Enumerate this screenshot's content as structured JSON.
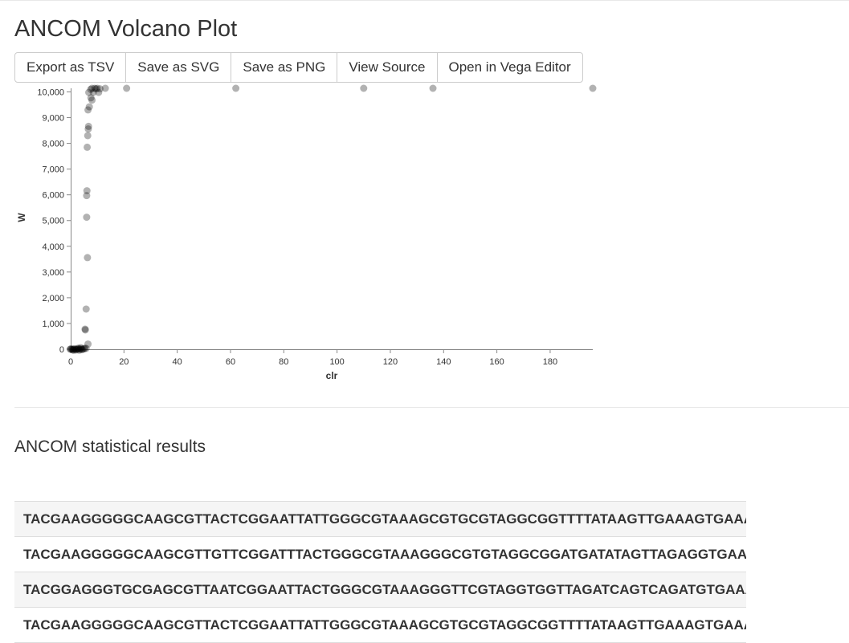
{
  "page": {
    "title": "ANCOM Volcano Plot",
    "section_title": "ANCOM statistical results"
  },
  "toolbar": {
    "export_tsv": "Export as TSV",
    "save_svg": "Save as SVG",
    "save_png": "Save as PNG",
    "view_source": "View Source",
    "open_vega": "Open in Vega Editor"
  },
  "chart_data": {
    "type": "scatter",
    "title": "",
    "xlabel": "clr",
    "ylabel": "W",
    "xlim": [
      0,
      196
    ],
    "ylim": [
      0,
      10140
    ],
    "x_ticks": [
      0,
      20,
      40,
      60,
      80,
      100,
      120,
      140,
      160,
      180
    ],
    "y_ticks": [
      0,
      1000,
      2000,
      3000,
      4000,
      5000,
      6000,
      7000,
      8000,
      9000,
      10000
    ],
    "y_tick_labels": [
      "0",
      "1,000",
      "2,000",
      "3,000",
      "4,000",
      "5,000",
      "6,000",
      "7,000",
      "8,000",
      "9,000",
      "10,000"
    ],
    "x_tick_labels": [
      "0",
      "20",
      "40",
      "60",
      "80",
      "100",
      "120",
      "140",
      "160",
      "180"
    ],
    "point_color": "#000000",
    "point_opacity": 0.3,
    "points": [
      {
        "x": 21,
        "y": 10140
      },
      {
        "x": 62,
        "y": 10140
      },
      {
        "x": 110,
        "y": 10140
      },
      {
        "x": 136,
        "y": 10140
      },
      {
        "x": 196,
        "y": 10140
      },
      {
        "x": 13,
        "y": 10140
      },
      {
        "x": 10,
        "y": 10140
      },
      {
        "x": 9,
        "y": 10140
      },
      {
        "x": 8,
        "y": 10140
      },
      {
        "x": 11,
        "y": 10120
      },
      {
        "x": 7.5,
        "y": 10100
      },
      {
        "x": 9.5,
        "y": 10120
      },
      {
        "x": 10.5,
        "y": 9980
      },
      {
        "x": 8.5,
        "y": 9980
      },
      {
        "x": 6.8,
        "y": 9980
      },
      {
        "x": 7.6,
        "y": 9770
      },
      {
        "x": 8,
        "y": 9680
      },
      {
        "x": 7,
        "y": 9420
      },
      {
        "x": 6.5,
        "y": 9300
      },
      {
        "x": 6.7,
        "y": 8660
      },
      {
        "x": 6.6,
        "y": 8560
      },
      {
        "x": 6.4,
        "y": 8300
      },
      {
        "x": 6.2,
        "y": 7850
      },
      {
        "x": 6.1,
        "y": 6160
      },
      {
        "x": 6.0,
        "y": 5970
      },
      {
        "x": 6.0,
        "y": 5130
      },
      {
        "x": 6.3,
        "y": 3560
      },
      {
        "x": 5.8,
        "y": 1560
      },
      {
        "x": 5.4,
        "y": 780
      },
      {
        "x": 5.5,
        "y": 750
      },
      {
        "x": 6.5,
        "y": 200
      },
      {
        "x": 5.8,
        "y": 30
      },
      {
        "x": 5.0,
        "y": 10
      },
      {
        "x": 4.5,
        "y": 0
      },
      {
        "x": 4.0,
        "y": 20
      },
      {
        "x": 3.5,
        "y": 0
      },
      {
        "x": 3.0,
        "y": 10
      },
      {
        "x": 2.6,
        "y": 0
      },
      {
        "x": 2.2,
        "y": 5
      },
      {
        "x": 1.8,
        "y": 0
      },
      {
        "x": 1.4,
        "y": 15
      },
      {
        "x": 1.0,
        "y": 0
      },
      {
        "x": 0.6,
        "y": 5
      },
      {
        "x": 0.3,
        "y": 0
      },
      {
        "x": 0.0,
        "y": 10
      },
      {
        "x": -0.2,
        "y": 0
      },
      {
        "x": 1.2,
        "y": -40
      },
      {
        "x": 2.0,
        "y": -30
      },
      {
        "x": 3.2,
        "y": -40
      },
      {
        "x": 4.2,
        "y": -20
      },
      {
        "x": 0.8,
        "y": -30
      },
      {
        "x": 2.8,
        "y": 40
      },
      {
        "x": 3.8,
        "y": 60
      },
      {
        "x": 5.3,
        "y": 40
      }
    ]
  },
  "results_table": {
    "rows": [
      "TACGAAGGGGGCAAGCGTTACTCGGAATTATTGGGCGTAAAGCGTGCGTAGGCGGTTTTATAAGTTGAAAGTGAAAGCCCTGGGCTCAACCTAGGAACTGCTTTCAAAACTGGAAAACTAGAGTGTGG",
      "TACGAAGGGGGCAAGCGTTGTTCGGATTTACTGGGCGTAAAGGGCGTGTAGGCGGATGATATAGTTAGAGGTGAAAGCCCGGGGCTTAACCTCGGAACTGCCTCTAAAACTATATCTCTAGAGTACG",
      "TACGGAGGGTGCGAGCGTTAATCGGAATTACTGGGCGTAAAGGGTTCGTAGGTGGTTAGATCAGTCAGATGTGAAATCCCCGGGCTTAACCTGGGAACTGCATTTGAAACTGGCTAGCTAGAGTACG",
      "TACGAAGGGGGCAAGCGTTACTCGGAATTATTGGGCGTAAAGCGTGCGTAGGCGGTTTTATAAGTTGAAAGTGAAAGCCCTGGGCTCAACCTAGGAACTGCTTTCAAAACTGGAAAACTAGAGTGTGG"
    ]
  }
}
